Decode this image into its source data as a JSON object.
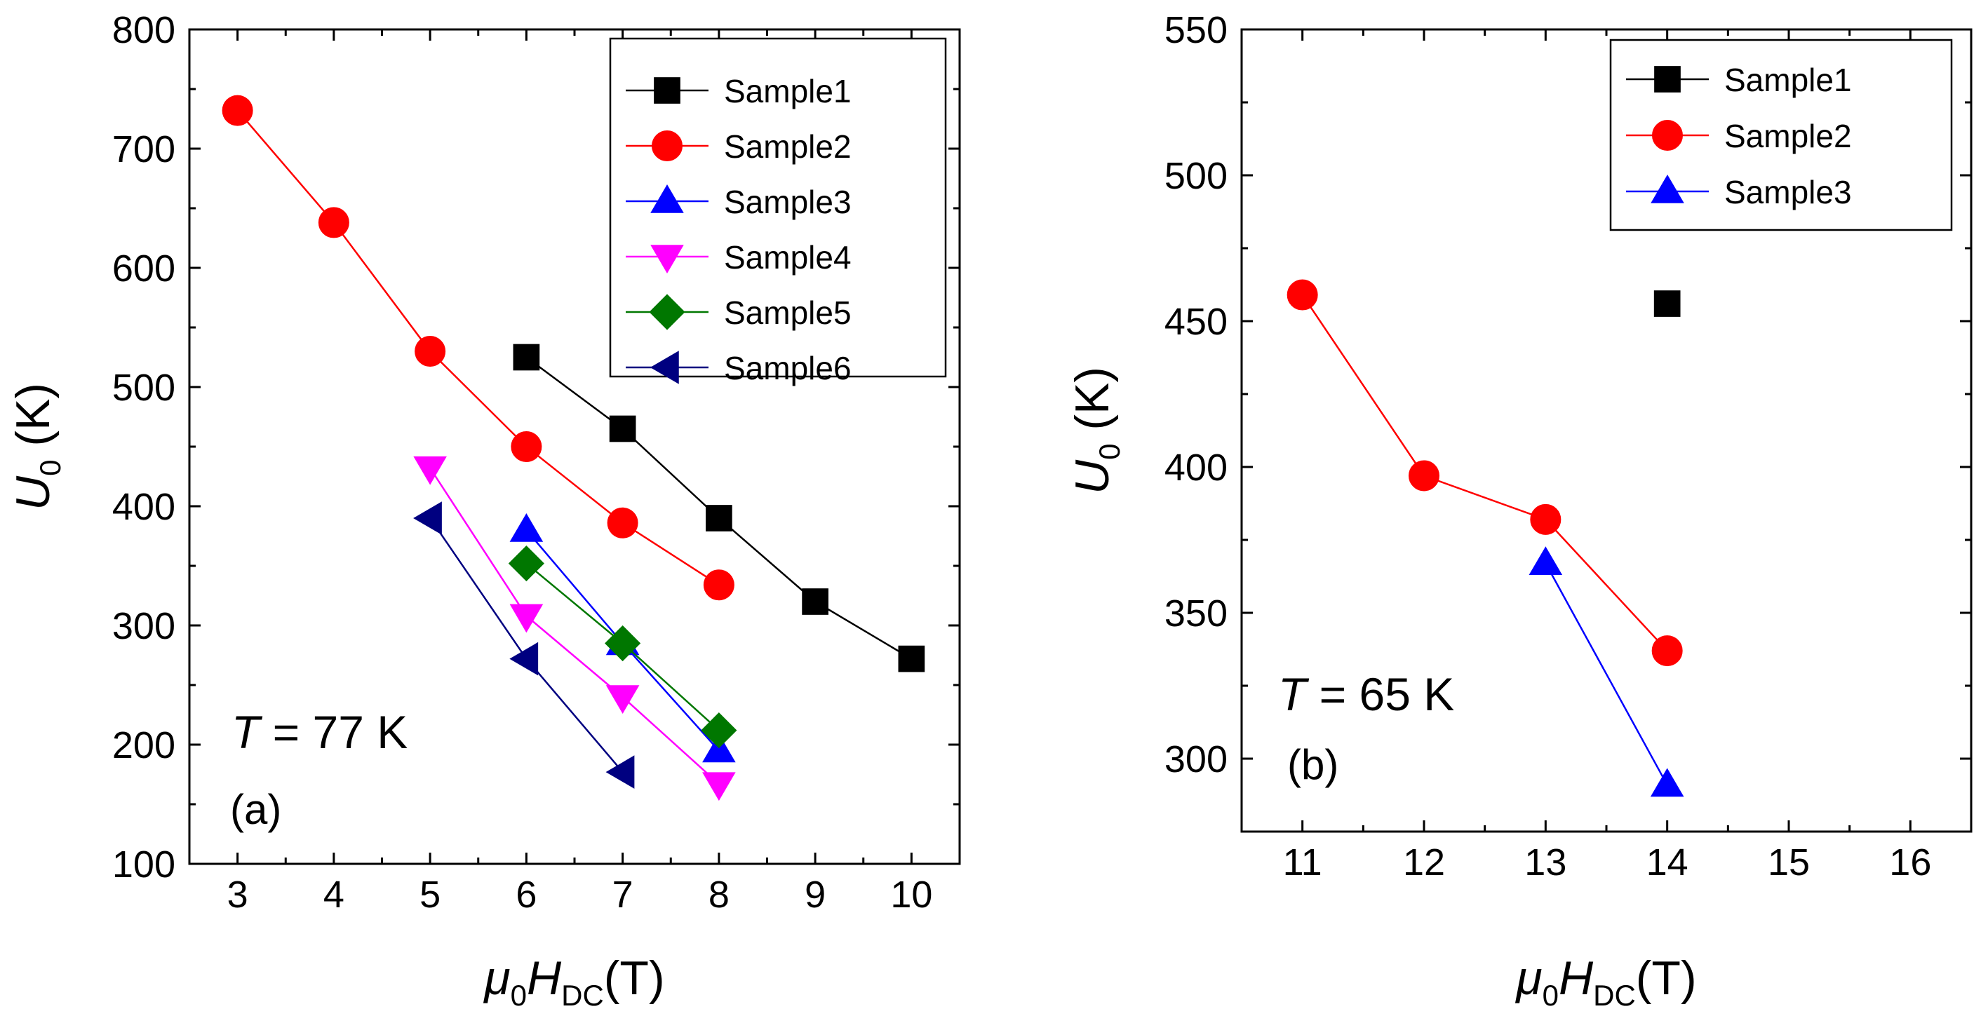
{
  "chart_data": [
    {
      "type": "line",
      "panel": "(a)",
      "annotation": {
        "italic": "T",
        "rest": " = 77 K"
      },
      "xlabel": {
        "mu": "μ",
        "mu_sub": "0",
        "main": "H",
        "sub": "DC",
        "unit": "(T)"
      },
      "ylabel": {
        "main": "U",
        "sub": "0",
        "unit": " (K)"
      },
      "xlim": [
        2.5,
        10.5
      ],
      "ylim": [
        100,
        800
      ],
      "xticks": [
        3,
        4,
        5,
        6,
        7,
        8,
        9,
        10
      ],
      "yticks": [
        100,
        200,
        300,
        400,
        500,
        600,
        700,
        800
      ],
      "xtick_labels": [
        "3",
        "4",
        "5",
        "6",
        "7",
        "8",
        "9",
        "10"
      ],
      "ytick_labels": [
        "100",
        "200",
        "300",
        "400",
        "500",
        "600",
        "700",
        "800"
      ],
      "legend_position": "top-right",
      "series": [
        {
          "name": "Sample1",
          "color": "#000000",
          "marker": "square",
          "x": [
            6,
            7,
            8,
            9,
            10
          ],
          "y": [
            525,
            465,
            390,
            320,
            272
          ]
        },
        {
          "name": "Sample2",
          "color": "#ff0000",
          "marker": "circle",
          "x": [
            3,
            4,
            5,
            6,
            7,
            8
          ],
          "y": [
            732,
            638,
            530,
            450,
            386,
            334
          ]
        },
        {
          "name": "Sample3",
          "color": "#0000ff",
          "marker": "triangle-up",
          "x": [
            6,
            7,
            8
          ],
          "y": [
            380,
            285,
            195
          ]
        },
        {
          "name": "Sample4",
          "color": "#ff00ff",
          "marker": "triangle-down",
          "x": [
            5,
            6,
            7,
            8
          ],
          "y": [
            432,
            308,
            240,
            167
          ]
        },
        {
          "name": "Sample5",
          "color": "#007700",
          "marker": "diamond",
          "x": [
            6,
            7,
            8
          ],
          "y": [
            352,
            285,
            212
          ]
        },
        {
          "name": "Sample6",
          "color": "#000080",
          "marker": "triangle-left",
          "x": [
            5,
            6,
            7
          ],
          "y": [
            390,
            272,
            177
          ]
        }
      ]
    },
    {
      "type": "line",
      "panel": "(b)",
      "annotation": {
        "italic": "T",
        "rest": " = 65 K"
      },
      "xlabel": {
        "mu": "μ",
        "mu_sub": "0",
        "main": "H",
        "sub": "DC",
        "unit": "(T)"
      },
      "ylabel": {
        "main": "U",
        "sub": "0",
        "unit": " (K)"
      },
      "xlim": [
        10.5,
        16.5
      ],
      "ylim": [
        275,
        550
      ],
      "xticks": [
        11,
        12,
        13,
        14,
        15,
        16
      ],
      "yticks": [
        300,
        350,
        400,
        450,
        500,
        550
      ],
      "xtick_labels": [
        "11",
        "12",
        "13",
        "14",
        "15",
        "16"
      ],
      "ytick_labels": [
        "300",
        "350",
        "400",
        "450",
        "500",
        "550"
      ],
      "legend_position": "top-right",
      "series": [
        {
          "name": "Sample1",
          "color": "#000000",
          "marker": "square",
          "x": [
            14
          ],
          "y": [
            456
          ]
        },
        {
          "name": "Sample2",
          "color": "#ff0000",
          "marker": "circle",
          "x": [
            11,
            12,
            13,
            14
          ],
          "y": [
            459,
            397,
            382,
            337
          ]
        },
        {
          "name": "Sample3",
          "color": "#0000ff",
          "marker": "triangle-up",
          "x": [
            13,
            14
          ],
          "y": [
            367,
            291
          ]
        }
      ]
    }
  ]
}
